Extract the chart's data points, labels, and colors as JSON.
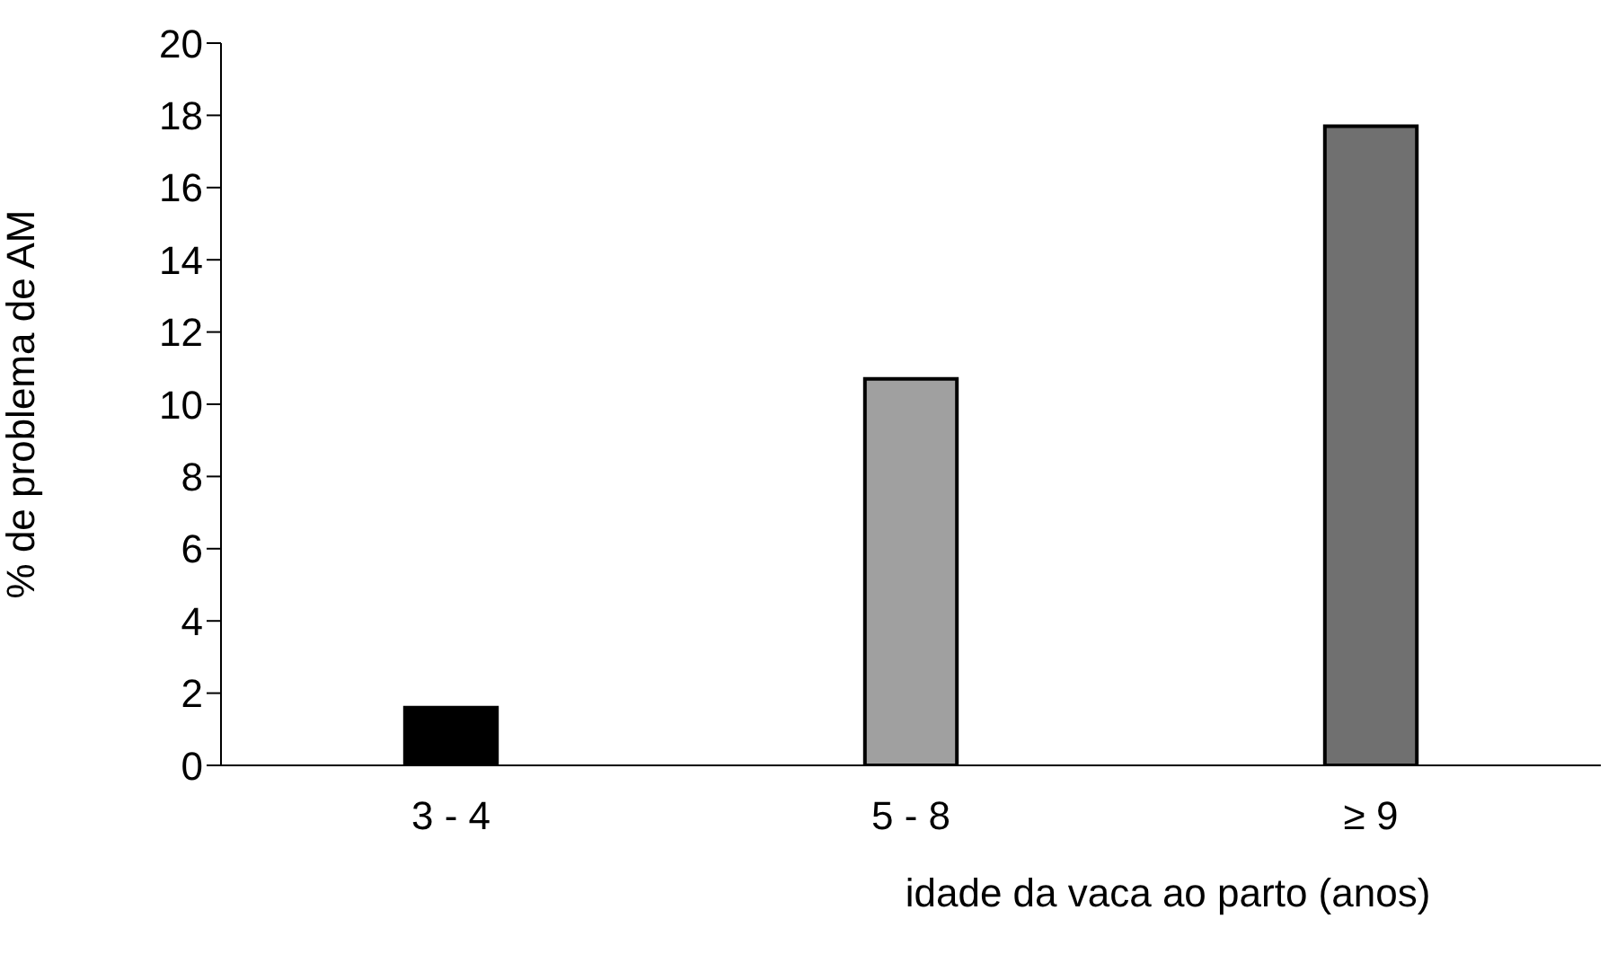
{
  "chart_data": {
    "type": "bar",
    "xlabel": "idade da vaca ao parto (anos)",
    "ylabel": "% de problema de AM",
    "categories": [
      "3 - 4",
      "5 - 8",
      "≥ 9"
    ],
    "values": [
      1.6,
      10.7,
      17.7
    ],
    "colors": [
      "#000000",
      "#a0a0a0",
      "#707070"
    ],
    "ylim": [
      0,
      20
    ],
    "yticks": [
      0,
      2,
      4,
      6,
      8,
      10,
      12,
      14,
      16,
      18,
      20
    ],
    "grid": false,
    "legend": false
  }
}
